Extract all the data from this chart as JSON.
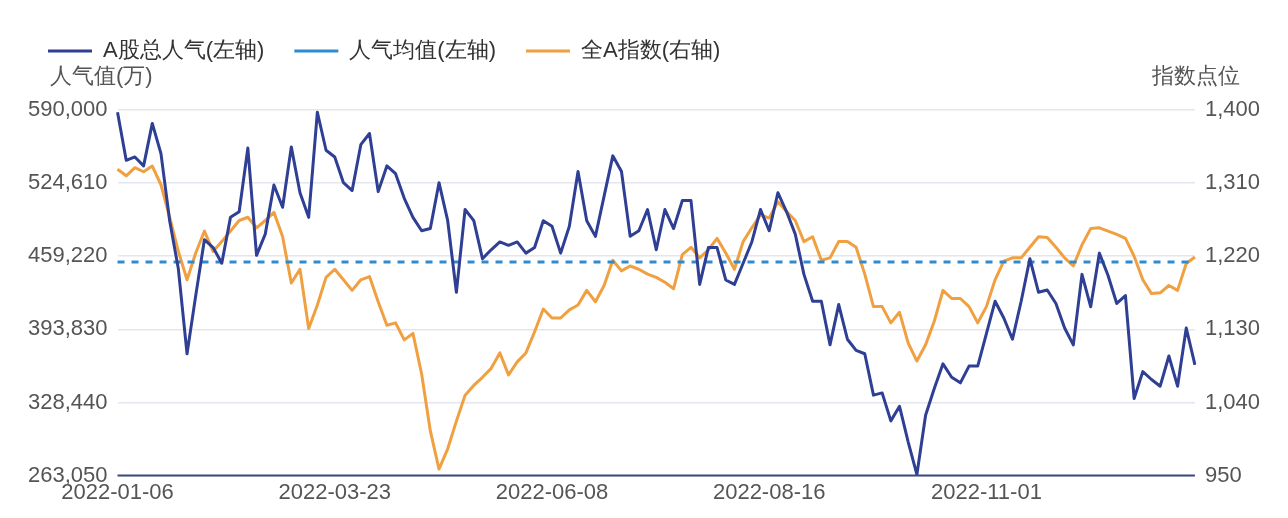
{
  "chart_data": {
    "type": "line",
    "ylabel": "人气值(万)",
    "y2label": "指数点位",
    "categories": [
      "2022-01-06",
      null,
      null,
      null,
      null,
      null,
      null,
      null,
      null,
      null,
      null,
      null,
      null,
      null,
      null,
      null,
      null,
      null,
      null,
      null,
      null,
      null,
      null,
      null,
      null,
      "2022-03-23",
      null,
      null,
      null,
      null,
      null,
      null,
      null,
      null,
      null,
      null,
      null,
      null,
      null,
      null,
      null,
      null,
      null,
      null,
      null,
      null,
      null,
      null,
      null,
      null,
      "2022-06-08",
      null,
      null,
      null,
      null,
      null,
      null,
      null,
      null,
      null,
      null,
      null,
      null,
      null,
      null,
      null,
      null,
      null,
      null,
      null,
      null,
      null,
      null,
      null,
      null,
      "2022-08-16",
      null,
      null,
      null,
      null,
      null,
      null,
      null,
      null,
      null,
      null,
      null,
      null,
      null,
      null,
      null,
      null,
      null,
      null,
      null,
      null,
      null,
      null,
      null,
      null,
      "2022-11-01",
      null,
      null,
      null,
      null,
      null,
      null,
      null,
      null,
      null,
      null,
      null,
      null,
      null,
      null,
      null,
      null,
      null,
      null,
      null,
      null,
      null,
      null,
      null,
      null
    ],
    "series": [
      {
        "name": "A股总人气(左轴)",
        "color": "#2e3f94",
        "values": [
          588000,
          545000,
          548000,
          540000,
          578000,
          551000,
          491000,
          448000,
          372000,
          424000,
          474000,
          467000,
          453000,
          494000,
          499000,
          556000,
          460000,
          479000,
          523000,
          503000,
          557000,
          516000,
          494000,
          588000,
          554000,
          548000,
          525000,
          518000,
          559000,
          569000,
          517000,
          540000,
          533000,
          511000,
          494000,
          482000,
          484000,
          525000,
          491000,
          427000,
          501000,
          491000,
          457000,
          465000,
          472000,
          469000,
          472000,
          462000,
          467000,
          491000,
          486000,
          462000,
          486000,
          535000,
          491000,
          477000,
          513000,
          549000,
          535000,
          477000,
          482000,
          501000,
          465000,
          501000,
          484000,
          509000,
          509000,
          434000,
          467000,
          467000,
          438000,
          434000,
          453000,
          472000,
          501000,
          482000,
          516000,
          499000,
          479000,
          443000,
          419000,
          419000,
          380000,
          416000,
          385000,
          375000,
          372000,
          335000,
          337000,
          312000,
          325000,
          293000,
          264000,
          317000,
          341000,
          363000,
          351000,
          346000,
          361000,
          361000,
          390000,
          419000,
          404000,
          385000,
          419000,
          457000,
          427000,
          429000,
          417000,
          395000,
          380000,
          443000,
          414000,
          462000,
          442000,
          417000,
          424000,
          332000,
          356000,
          349000,
          343000,
          370000,
          343000,
          395000,
          362000
        ]
      },
      {
        "name": "人气均值(左轴)",
        "color": "#2e8bd0",
        "line_style": "dashed",
        "values": [
          454000,
          454000,
          454000,
          454000,
          454000,
          454000,
          454000,
          454000,
          454000,
          454000,
          454000,
          454000,
          454000,
          454000,
          454000,
          454000,
          454000,
          454000,
          454000,
          454000,
          454000,
          454000,
          454000,
          454000,
          454000,
          454000,
          454000,
          454000,
          454000,
          454000,
          454000,
          454000,
          454000,
          454000,
          454000,
          454000,
          454000,
          454000,
          454000,
          454000,
          454000,
          454000,
          454000,
          454000,
          454000,
          454000,
          454000,
          454000,
          454000,
          454000,
          454000,
          454000,
          454000,
          454000,
          454000,
          454000,
          454000,
          454000,
          454000,
          454000,
          454000,
          454000,
          454000,
          454000,
          454000,
          454000,
          454000,
          454000,
          454000,
          454000,
          454000,
          454000,
          454000,
          454000,
          454000,
          454000,
          454000,
          454000,
          454000,
          454000,
          454000,
          454000,
          454000,
          454000,
          454000,
          454000,
          454000,
          454000,
          454000,
          454000,
          454000,
          454000,
          454000,
          454000,
          454000,
          454000,
          454000,
          454000,
          454000,
          454000,
          454000,
          454000,
          454000,
          454000,
          454000,
          454000,
          454000,
          454000,
          454000,
          454000,
          454000,
          454000,
          454000,
          454000,
          454000,
          454000,
          454000,
          454000,
          454000,
          454000,
          454000,
          454000,
          454000,
          454000,
          454000
        ]
      },
      {
        "name": "全A指数(右轴)",
        "color": "#f0a040",
        "axis": "y2",
        "values": [
          1327,
          1319,
          1329,
          1324,
          1331,
          1308,
          1268,
          1226,
          1191,
          1224,
          1251,
          1226,
          1238,
          1251,
          1264,
          1268,
          1255,
          1264,
          1274,
          1244,
          1187,
          1204,
          1131,
          1160,
          1194,
          1204,
          1191,
          1178,
          1191,
          1195,
          1164,
          1135,
          1138,
          1117,
          1125,
          1075,
          1005,
          958,
          983,
          1017,
          1049,
          1061,
          1071,
          1082,
          1101,
          1074,
          1090,
          1101,
          1127,
          1155,
          1144,
          1144,
          1154,
          1160,
          1178,
          1164,
          1184,
          1215,
          1202,
          1208,
          1204,
          1198,
          1194,
          1188,
          1180,
          1222,
          1231,
          1218,
          1228,
          1242,
          1224,
          1204,
          1238,
          1255,
          1271,
          1267,
          1287,
          1275,
          1264,
          1238,
          1244,
          1215,
          1218,
          1238,
          1238,
          1231,
          1198,
          1158,
          1158,
          1138,
          1151,
          1113,
          1091,
          1111,
          1140,
          1178,
          1168,
          1168,
          1158,
          1138,
          1158,
          1191,
          1214,
          1218,
          1218,
          1231,
          1244,
          1243,
          1231,
          1218,
          1208,
          1234,
          1254,
          1255,
          1251,
          1247,
          1242,
          1220,
          1191,
          1174,
          1175,
          1184,
          1178,
          1211,
          1219
        ]
      }
    ],
    "ylim": [
      263050,
      590000
    ],
    "yticks": [
      {
        "value": 263050,
        "label": "263,050"
      },
      {
        "value": 328440,
        "label": "328,440"
      },
      {
        "value": 393830,
        "label": "393,830"
      },
      {
        "value": 459220,
        "label": "459,220"
      },
      {
        "value": 524610,
        "label": "524,610"
      },
      {
        "value": 590000,
        "label": "590,000"
      }
    ],
    "y2lim": [
      950,
      1400
    ],
    "y2ticks": [
      950,
      {
        "value": 1040,
        "label": "1,040"
      },
      {
        "value": 1130,
        "label": "1,130"
      },
      {
        "value": 1220,
        "label": "1,220"
      },
      {
        "value": 1310,
        "label": "1,310"
      },
      {
        "value": 1400,
        "label": "1,400"
      }
    ],
    "grid": "y",
    "legend": "top left",
    "marker": "none",
    "line_style": "solid"
  }
}
